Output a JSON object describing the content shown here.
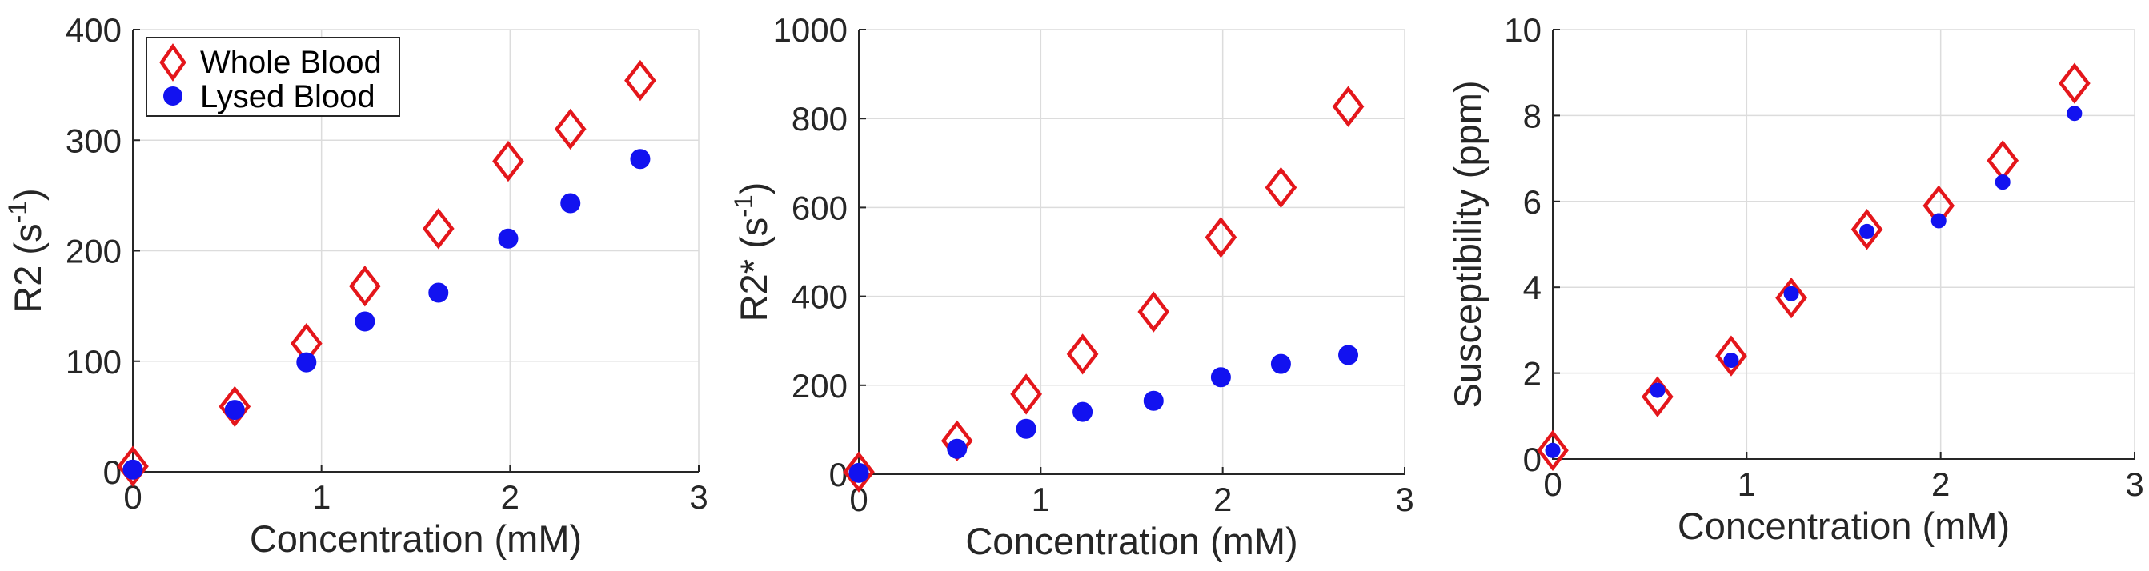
{
  "colors": {
    "whole_blood": "#e4161b",
    "lysed_blood": "#1212f0",
    "axis": "#262626",
    "grid": "#dcdcdc"
  },
  "legend": {
    "placement": "top-left",
    "entries": [
      {
        "label": "Whole Blood",
        "marker": "diamond-open",
        "color": "#e4161b"
      },
      {
        "label": "Lysed Blood",
        "marker": "circle-filled",
        "color": "#1212f0"
      }
    ]
  },
  "chart_data": [
    {
      "type": "scatter",
      "xlabel": "Concentration (mM)",
      "ylabel": "R2 (s-1)",
      "ylabel_main": "R2 (s",
      "ylabel_sup": "-1",
      "ylabel_end": ")",
      "xlim": [
        0,
        3
      ],
      "ylim": [
        0,
        400
      ],
      "xticks": [
        "0",
        "1",
        "2",
        "3"
      ],
      "yticks": [
        "0",
        "100",
        "200",
        "300",
        "400"
      ],
      "grid": true,
      "series": [
        {
          "name": "Whole Blood",
          "marker": "diamond",
          "x": [
            0,
            0.54,
            0.92,
            1.23,
            1.62,
            1.99,
            2.32,
            2.69
          ],
          "y": [
            5,
            59,
            116,
            168,
            220,
            281,
            310,
            354
          ]
        },
        {
          "name": "Lysed Blood",
          "marker": "circle",
          "x": [
            0,
            0.54,
            0.92,
            1.23,
            1.62,
            1.99,
            2.32,
            2.69
          ],
          "y": [
            2,
            56,
            99,
            136,
            162,
            211,
            243,
            283
          ]
        }
      ]
    },
    {
      "type": "scatter",
      "xlabel": "Concentration (mM)",
      "ylabel": "R2* (s-1)",
      "ylabel_main": "R2* (s",
      "ylabel_sup": "-1",
      "ylabel_end": ")",
      "xlim": [
        0,
        3
      ],
      "ylim": [
        0,
        1000
      ],
      "xticks": [
        "0",
        "1",
        "2",
        "3"
      ],
      "yticks": [
        "0",
        "200",
        "400",
        "600",
        "800",
        "1000"
      ],
      "grid": true,
      "series": [
        {
          "name": "Whole Blood",
          "marker": "diamond",
          "x": [
            0,
            0.54,
            0.92,
            1.23,
            1.62,
            1.99,
            2.32,
            2.69
          ],
          "y": [
            5,
            75,
            180,
            270,
            365,
            533,
            645,
            827
          ]
        },
        {
          "name": "Lysed Blood",
          "marker": "circle",
          "x": [
            0,
            0.54,
            0.92,
            1.23,
            1.62,
            1.99,
            2.32,
            2.69
          ],
          "y": [
            3,
            57,
            102,
            140,
            165,
            218,
            248,
            268
          ]
        }
      ]
    },
    {
      "type": "scatter",
      "xlabel": "Concentration (mM)",
      "ylabel": "Susceptibility (ppm)",
      "ylabel_main": "Susceptibility (ppm)",
      "ylabel_sup": "",
      "ylabel_end": "",
      "xlim": [
        0,
        3
      ],
      "ylim": [
        0,
        10
      ],
      "xticks": [
        "0",
        "1",
        "2",
        "3"
      ],
      "yticks": [
        "0",
        "2",
        "4",
        "6",
        "8",
        "10"
      ],
      "grid": true,
      "series": [
        {
          "name": "Whole Blood",
          "marker": "diamond",
          "x": [
            0,
            0.54,
            0.92,
            1.23,
            1.62,
            1.99,
            2.32,
            2.69
          ],
          "y": [
            0.2,
            1.45,
            2.4,
            3.75,
            5.35,
            5.9,
            6.95,
            8.75
          ]
        },
        {
          "name": "Lysed Blood",
          "marker": "circle",
          "x": [
            0,
            0.54,
            0.92,
            1.23,
            1.62,
            1.99,
            2.32,
            2.69
          ],
          "y": [
            0.2,
            1.6,
            2.3,
            3.85,
            5.3,
            5.55,
            6.45,
            8.05
          ]
        }
      ]
    }
  ]
}
